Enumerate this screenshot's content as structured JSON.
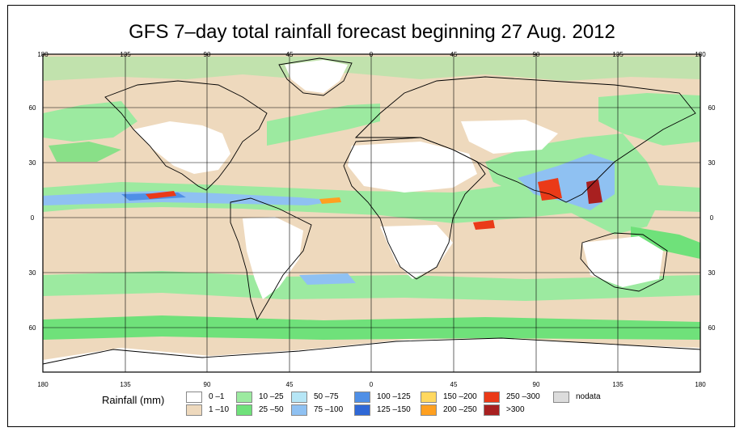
{
  "title": "GFS 7–day total rainfall forecast beginning 27 Aug. 2012",
  "map": {
    "lon_ticks": [
      "180",
      "135",
      "90",
      "45",
      "0",
      "45",
      "90",
      "135",
      "180"
    ],
    "lat_ticks": [
      "60",
      "30",
      "0",
      "30",
      "60"
    ],
    "colors": {
      "ocean_low": "#eed9bd",
      "land_dry": "#ffffff",
      "green_light": "#9ceaa0",
      "green": "#6fe17a",
      "blue_light": "#a9dcf3",
      "blue": "#7fb6f0",
      "blue_dark": "#2f78e0",
      "orange": "#ffa020",
      "red": "#ea3a18",
      "dark_red": "#a82020",
      "nodata": "#dcdcdc"
    }
  },
  "legend": {
    "title": "Rainfall (mm)",
    "items": [
      {
        "label": "0 –1",
        "color": "#ffffff"
      },
      {
        "label": "1 –10",
        "color": "#eed9bd"
      },
      {
        "label": "10 –25",
        "color": "#9ceaa0"
      },
      {
        "label": "25 –50",
        "color": "#6fe17a"
      },
      {
        "label": "50 –75",
        "color": "#b6e6f6"
      },
      {
        "label": "75 –100",
        "color": "#8fc1f2"
      },
      {
        "label": "100 –125",
        "color": "#4f8fe6"
      },
      {
        "label": "125 –150",
        "color": "#2f68d6"
      },
      {
        "label": "150 –200",
        "color": "#ffd860"
      },
      {
        "label": "200 –250",
        "color": "#ffa020"
      },
      {
        "label": "250 –300",
        "color": "#ea3a18"
      },
      {
        "label": ">300",
        "color": "#a82020"
      },
      {
        "label": "nodata",
        "color": "#dcdcdc"
      }
    ]
  }
}
